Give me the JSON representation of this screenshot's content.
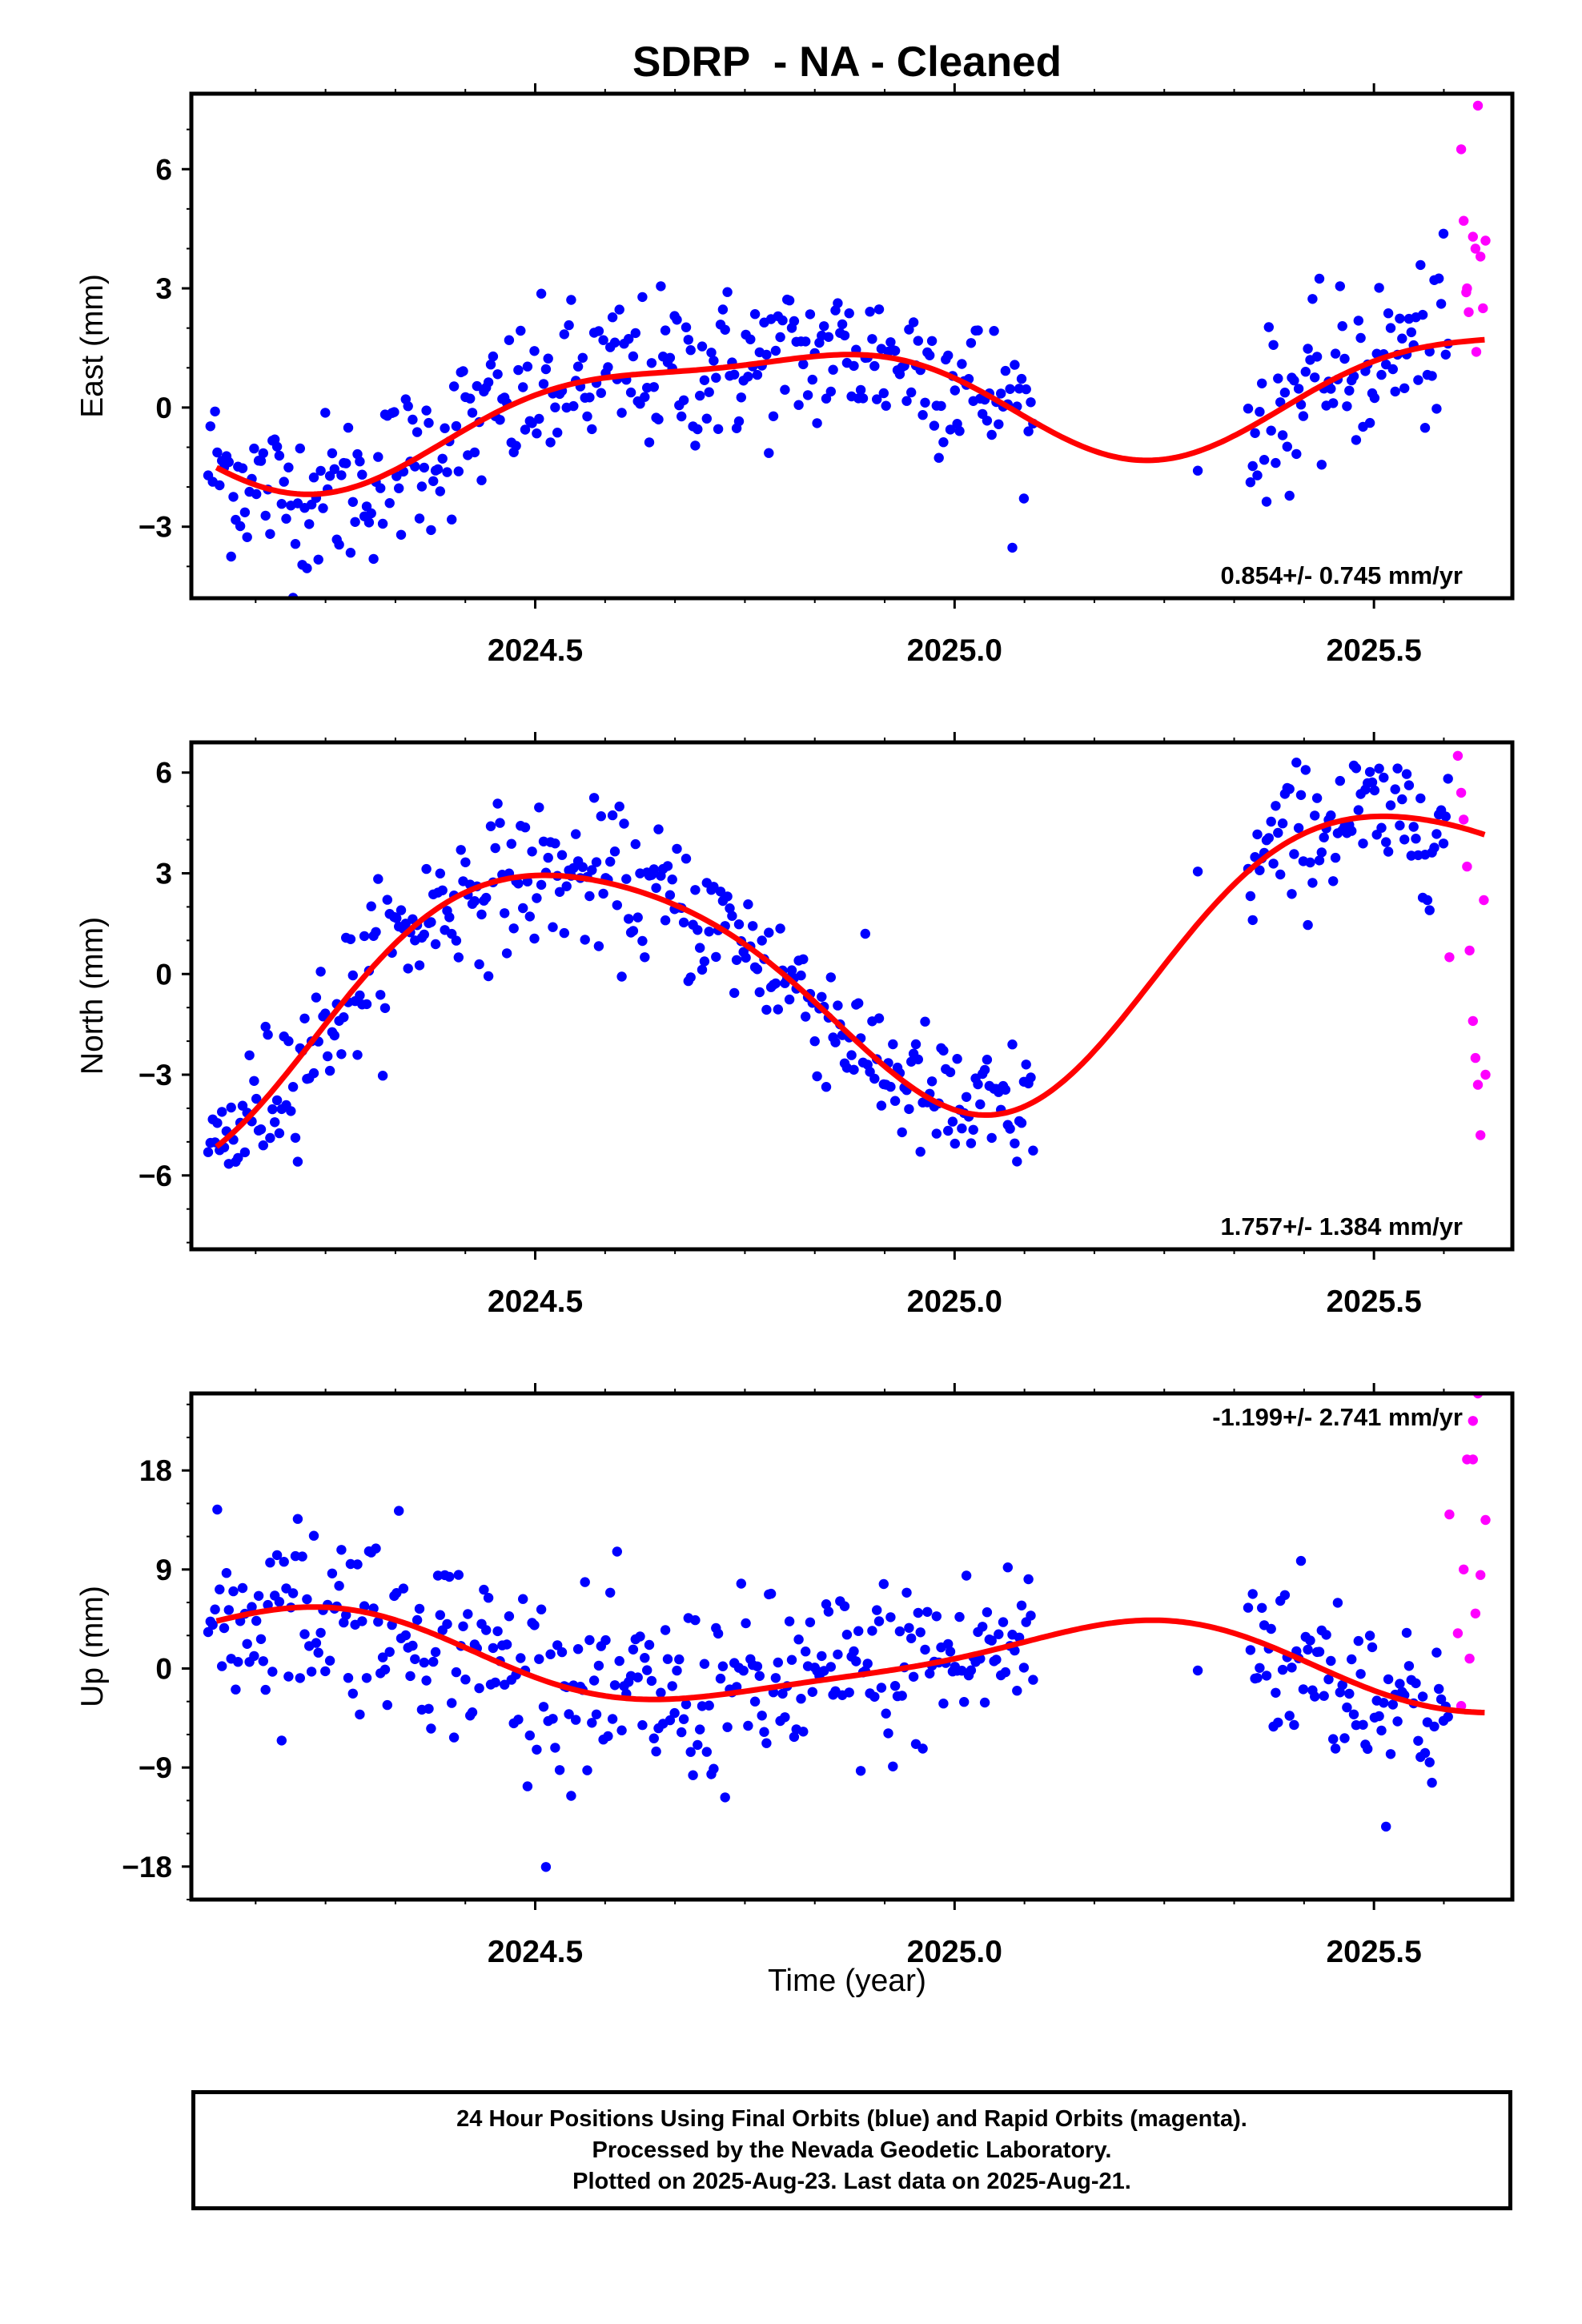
{
  "title": "SDRP  - NA - Cleaned",
  "xlabel": "Time (year)",
  "caption": [
    "24 Hour Positions Using Final Orbits (blue) and Rapid Orbits (magenta).",
    "Processed by the Nevada Geodetic Laboratory.",
    "Plotted on 2025-Aug-23. Last data on 2025-Aug-21."
  ],
  "colors": {
    "final": "#0000ff",
    "rapid": "#ff00ff",
    "model": "#ff0000",
    "frame": "#000000"
  },
  "chart_data": [
    {
      "type": "scatter",
      "ylabel": "East (mm)",
      "rate_label": "0.854+/- 0.745 mm/yr",
      "rate_position": "bottom-right",
      "xlim": [
        2024.09,
        2025.665
      ],
      "ylim": [
        -4.8,
        7.9
      ],
      "xticks": [
        2024.5,
        2025.0,
        2025.5
      ],
      "yticks": [
        -3,
        0,
        3,
        6
      ],
      "ytick_labels": [
        "−3",
        "0",
        "3",
        "6"
      ],
      "grid": false,
      "final_orbits": {
        "points_per_year": 365,
        "start": 2024.11,
        "end": 2025.095,
        "extra_segment": [
          2025.35,
          2025.59
        ],
        "sigma": 1.0,
        "model": {
          "mean": 0.2,
          "rate": 0.854,
          "amp": 1.4,
          "phase": 0.5,
          "amp2": 0.45
        }
      },
      "rapid_orbits": [
        [
          2025.604,
          6.5
        ],
        [
          2025.607,
          4.7
        ],
        [
          2025.611,
          3.0
        ],
        [
          2025.613,
          2.4
        ],
        [
          2025.618,
          4.3
        ],
        [
          2025.621,
          4.0
        ],
        [
          2025.624,
          7.6
        ],
        [
          2025.627,
          3.8
        ],
        [
          2025.63,
          2.5
        ],
        [
          2025.633,
          4.2
        ],
        [
          2025.622,
          1.4
        ],
        [
          2025.61,
          2.9
        ]
      ],
      "model_curve": {
        "from": 2024.12,
        "to": 2025.635
      }
    },
    {
      "type": "scatter",
      "ylabel": "North (mm)",
      "rate_label": "1.757+/- 1.384 mm/yr",
      "rate_position": "bottom-right",
      "xlim": [
        2024.09,
        2025.665
      ],
      "ylim": [
        -8.2,
        6.9
      ],
      "xticks": [
        2024.5,
        2025.0,
        2025.5
      ],
      "yticks": [
        -6,
        -3,
        0,
        3,
        6
      ],
      "ytick_labels": [
        "−6",
        "−3",
        "0",
        "3",
        "6"
      ],
      "grid": false,
      "final_orbits": {
        "points_per_year": 365,
        "start": 2024.11,
        "end": 2025.095,
        "extra_segment": [
          2025.35,
          2025.59
        ],
        "sigma": 1.05,
        "model": {
          "mean": 0.0,
          "rate": 1.757,
          "amp": 4.0,
          "phase": 0.28,
          "amp2": 0.55
        }
      },
      "rapid_orbits": [
        [
          2025.6,
          6.5
        ],
        [
          2025.604,
          5.4
        ],
        [
          2025.607,
          4.6
        ],
        [
          2025.611,
          3.2
        ],
        [
          2025.614,
          0.7
        ],
        [
          2025.618,
          -1.4
        ],
        [
          2025.621,
          -2.5
        ],
        [
          2025.624,
          -3.3
        ],
        [
          2025.627,
          -4.8
        ],
        [
          2025.631,
          2.2
        ],
        [
          2025.633,
          -3.0
        ],
        [
          2025.59,
          0.5
        ]
      ],
      "model_curve": {
        "from": 2024.12,
        "to": 2025.635
      }
    },
    {
      "type": "scatter",
      "ylabel": "Up (mm)",
      "rate_label": "-1.199+/- 2.741 mm/yr",
      "rate_position": "top-right",
      "xlim": [
        2024.09,
        2025.665
      ],
      "ylim": [
        -21,
        25
      ],
      "xticks": [
        2024.5,
        2025.0,
        2025.5
      ],
      "yticks": [
        -18,
        -9,
        0,
        9,
        18
      ],
      "ytick_labels": [
        "−18",
        "−9",
        "0",
        "9",
        "18"
      ],
      "grid": false,
      "final_orbits": {
        "points_per_year": 365,
        "start": 2024.11,
        "end": 2025.095,
        "extra_segment": [
          2025.35,
          2025.59
        ],
        "sigma": 4.2,
        "model": {
          "mean": 0.6,
          "rate": -1.199,
          "amp": 3.7,
          "phase": 0.95,
          "amp2": 0.8
        }
      },
      "rapid_orbits": [
        [
          2025.59,
          14.0
        ],
        [
          2025.6,
          3.2
        ],
        [
          2025.604,
          -3.4
        ],
        [
          2025.607,
          9.0
        ],
        [
          2025.611,
          19.0
        ],
        [
          2025.614,
          0.9
        ],
        [
          2025.618,
          22.5
        ],
        [
          2025.621,
          5.0
        ],
        [
          2025.624,
          25.0
        ],
        [
          2025.627,
          8.5
        ],
        [
          2025.633,
          13.5
        ],
        [
          2025.618,
          19.0
        ]
      ],
      "model_curve": {
        "from": 2024.12,
        "to": 2025.635
      }
    }
  ]
}
